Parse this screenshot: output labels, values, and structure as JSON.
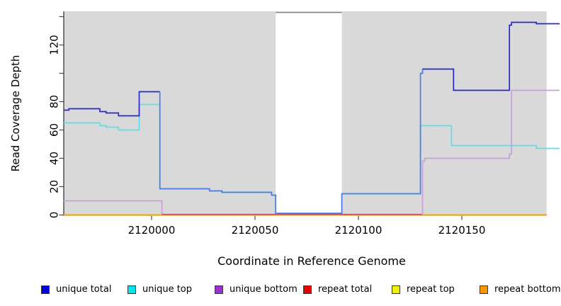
{
  "chart_data": {
    "type": "line",
    "title": "",
    "xlabel": "Coordinate in Reference Genome",
    "ylabel": "Read Coverage Depth",
    "xlim": [
      2119957.5,
      2120197.3
    ],
    "ylim": [
      0,
      144
    ],
    "x_ticks": [
      2120000,
      2120050,
      2120100,
      2120150
    ],
    "y_ticks": [
      0,
      20,
      40,
      60,
      80,
      100,
      120,
      140
    ],
    "y_tick_labels": [
      "0",
      "20",
      "40",
      "60",
      "80",
      "",
      "120",
      ""
    ],
    "panel_background": "#d9d9d9",
    "gap_border_color": "#858585",
    "shaded_regions": [
      [
        2119957.5,
        2120060
      ],
      [
        2120092,
        2120191
      ]
    ],
    "gap_region": [
      2120060,
      2120092
    ],
    "legend_order": [
      "unique total",
      "unique top",
      "unique bottom",
      "repeat total",
      "repeat top",
      "repeat bottom"
    ],
    "series": [
      {
        "name": "unique total",
        "slug": "unique-total",
        "legend_color": "#0000e0",
        "segments": [
          {
            "color": "#2727d4",
            "points": [
              [
                2119957.5,
                74
              ],
              [
                2119960,
                74
              ],
              [
                2119960,
                75
              ],
              [
                2119975,
                75
              ],
              [
                2119975,
                73
              ],
              [
                2119978,
                73
              ],
              [
                2119978,
                72
              ],
              [
                2119984,
                72
              ],
              [
                2119984,
                70
              ],
              [
                2119994,
                70
              ],
              [
                2119994,
                87
              ],
              [
                2120004,
                87
              ]
            ]
          },
          {
            "color": "#4d7ce8",
            "points": [
              [
                2120004,
                87
              ],
              [
                2120004,
                18.5
              ],
              [
                2120028,
                18.5
              ],
              [
                2120028,
                17
              ],
              [
                2120034,
                17
              ],
              [
                2120034,
                16
              ],
              [
                2120058,
                16
              ],
              [
                2120058,
                14
              ],
              [
                2120060,
                14
              ],
              [
                2120060,
                1.2
              ],
              [
                2120092,
                1.2
              ],
              [
                2120092,
                15
              ],
              [
                2120130,
                15
              ],
              [
                2120130,
                100
              ],
              [
                2120131,
                100
              ],
              [
                2120131,
                103
              ]
            ]
          },
          {
            "color": "#2727d4",
            "points": [
              [
                2120131,
                103
              ],
              [
                2120146,
                103
              ],
              [
                2120146,
                88
              ],
              [
                2120173,
                88
              ],
              [
                2120173,
                134
              ],
              [
                2120174,
                134
              ],
              [
                2120174,
                136
              ],
              [
                2120186,
                136
              ],
              [
                2120186,
                135
              ],
              [
                2120197.3,
                135
              ]
            ]
          }
        ]
      },
      {
        "name": "unique top",
        "slug": "unique-top",
        "legend_color": "#00e5ee",
        "segments": [
          {
            "color": "#5cdfe6",
            "points": [
              [
                2119957.5,
                65
              ],
              [
                2119975,
                65
              ],
              [
                2119975,
                63
              ],
              [
                2119978,
                63
              ],
              [
                2119978,
                62
              ],
              [
                2119984,
                62
              ],
              [
                2119984,
                60
              ],
              [
                2119994,
                60
              ],
              [
                2119994,
                78
              ],
              [
                2120004,
                78
              ],
              [
                2120004,
                18.5
              ],
              [
                2120028,
                18.5
              ],
              [
                2120028,
                17
              ],
              [
                2120034,
                17
              ],
              [
                2120034,
                16
              ],
              [
                2120058,
                16
              ],
              [
                2120058,
                14
              ],
              [
                2120060,
                14
              ],
              [
                2120060,
                1.2
              ],
              [
                2120092,
                1.2
              ],
              [
                2120092,
                15
              ],
              [
                2120130,
                15
              ],
              [
                2120130,
                63
              ],
              [
                2120145,
                63
              ],
              [
                2120145,
                49
              ],
              [
                2120186,
                49
              ],
              [
                2120186,
                47
              ],
              [
                2120197.3,
                47
              ]
            ]
          }
        ]
      },
      {
        "name": "unique bottom",
        "slug": "unique-bottom",
        "legend_color": "#9b30d0",
        "segments": [
          {
            "color": "#c9a0dc",
            "points": [
              [
                2119957.5,
                10
              ],
              [
                2120005,
                10
              ],
              [
                2120005,
                0.5
              ]
            ]
          },
          {
            "color": "#c44f6e",
            "points": [
              [
                2120005,
                0.4
              ],
              [
                2120131,
                0.4
              ]
            ]
          },
          {
            "color": "#c9a0dc",
            "points": [
              [
                2120131,
                0.4
              ],
              [
                2120131,
                38
              ],
              [
                2120132,
                38
              ],
              [
                2120132,
                40
              ],
              [
                2120173,
                40
              ],
              [
                2120173,
                43
              ],
              [
                2120174,
                43
              ],
              [
                2120174,
                88
              ],
              [
                2120197.3,
                88
              ]
            ]
          }
        ]
      },
      {
        "name": "repeat total",
        "slug": "repeat-total",
        "legend_color": "#e60000",
        "segments": [
          {
            "color": "#dd2222",
            "points": [
              [
                2119957.5,
                0
              ],
              [
                2120191,
                0
              ]
            ]
          }
        ]
      },
      {
        "name": "repeat top",
        "slug": "repeat-top",
        "legend_color": "#f2f200",
        "segments": [
          {
            "color": "#f2f200",
            "points": [
              [
                2119957.5,
                0
              ],
              [
                2120191,
                0
              ]
            ]
          }
        ]
      },
      {
        "name": "repeat bottom",
        "slug": "repeat-bottom",
        "legend_color": "#ff9800",
        "segments": [
          {
            "color": "#ff9800",
            "points": [
              [
                2119957.5,
                0
              ],
              [
                2120191,
                0
              ]
            ]
          }
        ]
      }
    ]
  }
}
